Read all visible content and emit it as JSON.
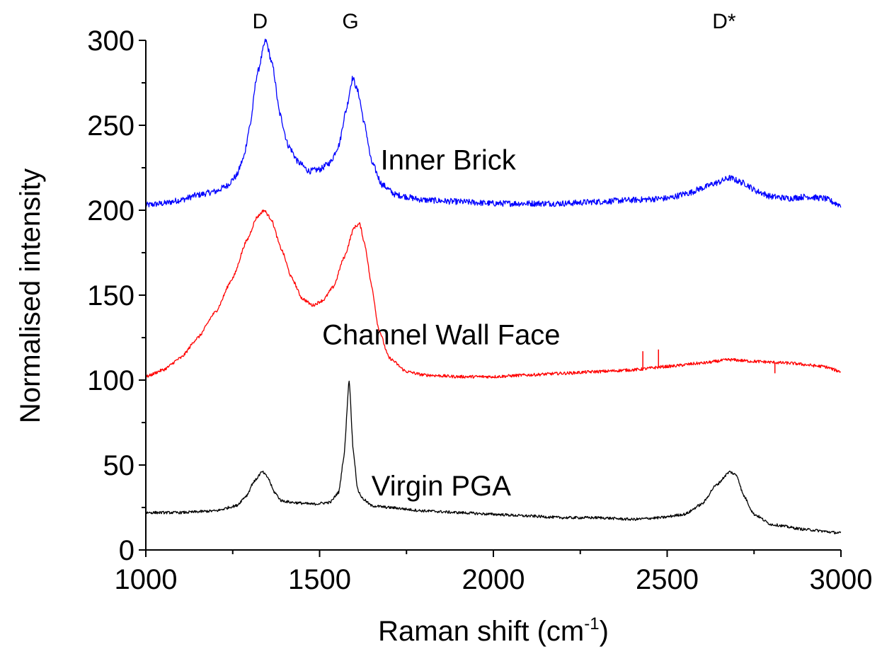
{
  "chart_data": {
    "type": "line",
    "title": "",
    "xlabel": "Raman shift (cm",
    "xlabel_sup": "-1",
    "xlabel_suffix": ")",
    "ylabel": "Normalised intensity",
    "xlim": [
      1000,
      3000
    ],
    "ylim": [
      0,
      300
    ],
    "x_ticks": [
      1000,
      1500,
      2000,
      2500,
      3000
    ],
    "x_tick_labels": [
      "1000",
      "1500",
      "2000",
      "2500",
      "3000"
    ],
    "x_minor_ticks": [
      1250,
      1750,
      2250,
      2750
    ],
    "y_ticks": [
      0,
      50,
      100,
      150,
      200,
      250,
      300
    ],
    "y_tick_labels": [
      "0",
      "50",
      "100",
      "150",
      "200",
      "250",
      "300"
    ],
    "y_minor_ticks": [
      25,
      75,
      125,
      175,
      225,
      275
    ],
    "grid": false,
    "legend": "none",
    "peak_labels": [
      {
        "text": "D",
        "x": 1345
      },
      {
        "text": "G",
        "x": 1605
      },
      {
        "text": "D*",
        "x": 2680
      }
    ],
    "series": [
      {
        "name": "Inner Brick",
        "color": "#0000ff",
        "label_x": 1870,
        "label_y": 224,
        "noise": 1.8,
        "points": [
          [
            1000,
            203
          ],
          [
            1050,
            204
          ],
          [
            1100,
            206
          ],
          [
            1150,
            209
          ],
          [
            1200,
            211
          ],
          [
            1230,
            214
          ],
          [
            1260,
            220
          ],
          [
            1280,
            230
          ],
          [
            1300,
            250
          ],
          [
            1320,
            280
          ],
          [
            1345,
            300
          ],
          [
            1365,
            285
          ],
          [
            1385,
            257
          ],
          [
            1410,
            238
          ],
          [
            1440,
            228
          ],
          [
            1470,
            223
          ],
          [
            1500,
            224
          ],
          [
            1530,
            228
          ],
          [
            1555,
            238
          ],
          [
            1575,
            258
          ],
          [
            1595,
            278
          ],
          [
            1610,
            270
          ],
          [
            1630,
            250
          ],
          [
            1650,
            228
          ],
          [
            1680,
            215
          ],
          [
            1720,
            209
          ],
          [
            1800,
            206
          ],
          [
            1900,
            205
          ],
          [
            2000,
            204
          ],
          [
            2100,
            204
          ],
          [
            2200,
            204
          ],
          [
            2300,
            205
          ],
          [
            2400,
            206
          ],
          [
            2500,
            207
          ],
          [
            2560,
            210
          ],
          [
            2600,
            213
          ],
          [
            2640,
            216
          ],
          [
            2680,
            219
          ],
          [
            2720,
            216
          ],
          [
            2760,
            211
          ],
          [
            2800,
            208
          ],
          [
            2850,
            207
          ],
          [
            2900,
            208
          ],
          [
            2950,
            207
          ],
          [
            3000,
            203
          ]
        ]
      },
      {
        "name": "Channel Wall Face",
        "color": "#ff0000",
        "label_x": 1850,
        "label_y": 121,
        "noise": 0.9,
        "points": [
          [
            1000,
            102
          ],
          [
            1050,
            106
          ],
          [
            1100,
            113
          ],
          [
            1150,
            125
          ],
          [
            1200,
            140
          ],
          [
            1250,
            160
          ],
          [
            1290,
            182
          ],
          [
            1320,
            196
          ],
          [
            1340,
            200
          ],
          [
            1360,
            195
          ],
          [
            1390,
            177
          ],
          [
            1420,
            160
          ],
          [
            1450,
            148
          ],
          [
            1480,
            144
          ],
          [
            1510,
            147
          ],
          [
            1540,
            155
          ],
          [
            1570,
            172
          ],
          [
            1600,
            190
          ],
          [
            1615,
            192
          ],
          [
            1630,
            180
          ],
          [
            1650,
            155
          ],
          [
            1670,
            130
          ],
          [
            1700,
            113
          ],
          [
            1750,
            105
          ],
          [
            1800,
            103
          ],
          [
            1900,
            102
          ],
          [
            2000,
            102
          ],
          [
            2100,
            103
          ],
          [
            2200,
            104
          ],
          [
            2300,
            105
          ],
          [
            2400,
            106
          ],
          [
            2500,
            108
          ],
          [
            2600,
            110
          ],
          [
            2680,
            112
          ],
          [
            2750,
            111
          ],
          [
            2850,
            110
          ],
          [
            2950,
            108
          ],
          [
            3000,
            105
          ]
        ],
        "spikes": [
          [
            2430,
            117
          ],
          [
            2475,
            118
          ],
          [
            2810,
            104
          ]
        ]
      },
      {
        "name": "Virgin PGA",
        "color": "#000000",
        "label_x": 1850,
        "label_y": 32,
        "noise": 0.8,
        "points": [
          [
            1000,
            22
          ],
          [
            1100,
            22
          ],
          [
            1200,
            23
          ],
          [
            1260,
            26
          ],
          [
            1290,
            32
          ],
          [
            1310,
            40
          ],
          [
            1335,
            46
          ],
          [
            1350,
            43
          ],
          [
            1370,
            34
          ],
          [
            1390,
            29
          ],
          [
            1420,
            28
          ],
          [
            1480,
            27
          ],
          [
            1530,
            28
          ],
          [
            1555,
            34
          ],
          [
            1570,
            55
          ],
          [
            1585,
            100
          ],
          [
            1597,
            58
          ],
          [
            1610,
            35
          ],
          [
            1625,
            30
          ],
          [
            1650,
            26
          ],
          [
            1700,
            25
          ],
          [
            1800,
            23
          ],
          [
            1900,
            22
          ],
          [
            2000,
            21
          ],
          [
            2100,
            20
          ],
          [
            2200,
            19
          ],
          [
            2300,
            19
          ],
          [
            2400,
            18
          ],
          [
            2480,
            19
          ],
          [
            2550,
            21
          ],
          [
            2600,
            27
          ],
          [
            2640,
            38
          ],
          [
            2680,
            46
          ],
          [
            2700,
            44
          ],
          [
            2720,
            32
          ],
          [
            2750,
            21
          ],
          [
            2800,
            15
          ],
          [
            2900,
            12
          ],
          [
            3000,
            10
          ]
        ]
      }
    ]
  }
}
